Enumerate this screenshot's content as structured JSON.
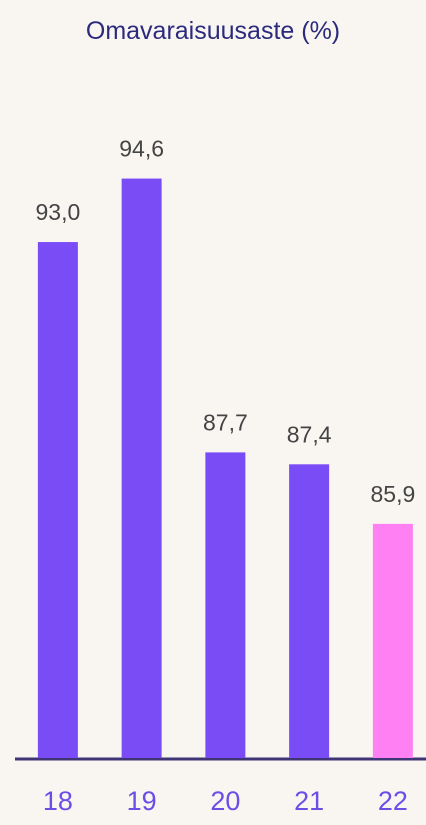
{
  "chart_data": {
    "type": "bar",
    "title": "Omavaraisuusaste (%)",
    "categories": [
      "18",
      "19",
      "20",
      "21",
      "22"
    ],
    "values": [
      93.0,
      94.6,
      87.7,
      87.4,
      85.9
    ],
    "value_labels": [
      "93,0",
      "94,6",
      "87,7",
      "87,4",
      "85,9"
    ],
    "colors": [
      "#7a4cf6",
      "#7a4cf6",
      "#7a4cf6",
      "#7a4cf6",
      "#ff80f2"
    ],
    "ylim": [
      80,
      96
    ]
  }
}
